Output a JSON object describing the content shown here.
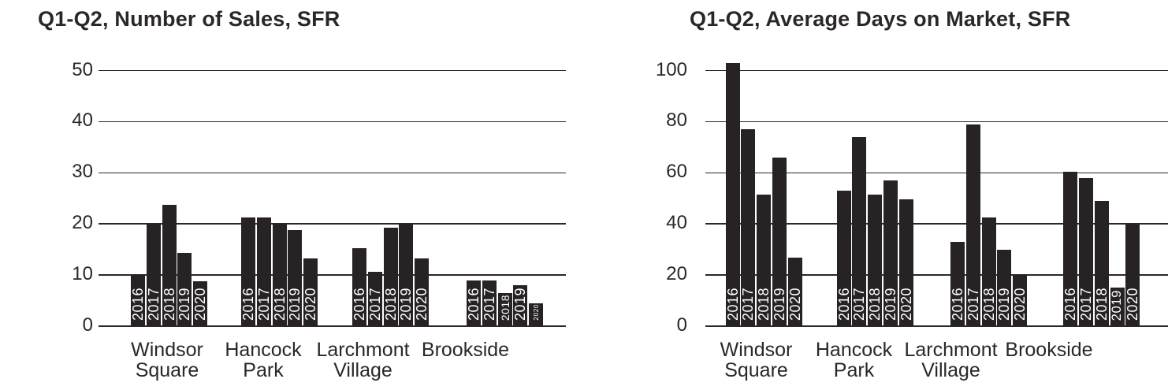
{
  "chart_data": [
    {
      "type": "bar",
      "title": "Q1-Q2, Number of Sales, SFR",
      "categories": [
        "Windsor Square",
        "Hancock Park",
        "Larchmont Village",
        "Brookside"
      ],
      "category_lines": [
        [
          "Windsor",
          "Square"
        ],
        [
          "Hancock",
          "Park"
        ],
        [
          "Larchmont",
          "Village"
        ],
        [
          "Brookside"
        ]
      ],
      "series": [
        {
          "name": "2016",
          "values": [
            10.2,
            21.2,
            15.3,
            9
          ]
        },
        {
          "name": "2017",
          "values": [
            20,
            21.2,
            10.7,
            9
          ]
        },
        {
          "name": "2018",
          "values": [
            23.8,
            20,
            19.2,
            6.5
          ]
        },
        {
          "name": "2019",
          "values": [
            14.3,
            18.8,
            20,
            8
          ]
        },
        {
          "name": "2020",
          "values": [
            8.8,
            13.2,
            13.2,
            4.5
          ]
        }
      ],
      "xlabel": "",
      "ylabel": "",
      "ylim": [
        0,
        50
      ],
      "yticks": [
        50,
        40,
        30,
        20,
        10,
        0
      ],
      "grid": true,
      "legend": "none",
      "bar_color": "#272223",
      "bar_label_color": "#ffffff",
      "bar_labels": "year of each bar, rotated vertically inside bar"
    },
    {
      "type": "bar",
      "title": "Q1-Q2, Average Days on Market, SFR",
      "categories": [
        "Windsor Square",
        "Hancock Park",
        "Larchmont Village",
        "Brookside"
      ],
      "category_lines": [
        [
          "Windsor",
          "Square"
        ],
        [
          "Hancock",
          "Park"
        ],
        [
          "Larchmont",
          "Village"
        ],
        [
          "Brookside"
        ]
      ],
      "series": [
        {
          "name": "2016",
          "values": [
            103,
            53,
            33,
            60.5
          ]
        },
        {
          "name": "2017",
          "values": [
            77,
            74,
            79,
            58
          ]
        },
        {
          "name": "2018",
          "values": [
            51.5,
            51.5,
            42.5,
            49
          ]
        },
        {
          "name": "2019",
          "values": [
            66,
            57,
            30,
            15
          ]
        },
        {
          "name": "2020",
          "values": [
            26.8,
            49.5,
            20.3,
            40
          ]
        }
      ],
      "xlabel": "",
      "ylabel": "",
      "ylim": [
        0,
        100
      ],
      "yticks": [
        100,
        80,
        60,
        40,
        20,
        0
      ],
      "grid": true,
      "legend": "none",
      "bar_color": "#272223",
      "bar_label_color": "#ffffff",
      "bar_labels": "year of each bar, rotated vertically inside bar"
    }
  ]
}
